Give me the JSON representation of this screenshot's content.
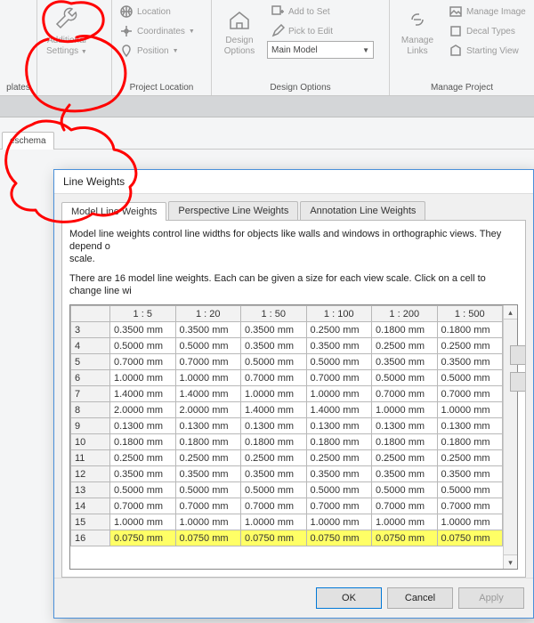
{
  "ribbon": {
    "group_plates": {
      "title_frag": "plates"
    },
    "group_settings": {
      "big": {
        "label1": "Additional",
        "label2": "Settings"
      }
    },
    "group_project_location": {
      "title": "Project Location",
      "items": [
        "Location",
        "Coordinates",
        "Position"
      ]
    },
    "group_design_options": {
      "title": "Design Options",
      "big": {
        "label1": "Design",
        "label2": "Options"
      },
      "items": [
        "Add to Set",
        "Pick to Edit"
      ],
      "combo": "Main Model"
    },
    "group_manage_project": {
      "title": "Manage Project",
      "big": {
        "label1": "Manage",
        "label2": "Links"
      },
      "items": [
        "Manage  Image",
        "Decal  Types",
        "Starting  View"
      ]
    }
  },
  "subbar": {
    "stub": "eschema"
  },
  "dialog": {
    "title": "Line Weights",
    "tabs": [
      "Model Line Weights",
      "Perspective Line Weights",
      "Annotation Line Weights"
    ],
    "active_tab": 0,
    "desc1": "Model line weights control line widths for objects like walls and windows in orthographic views. They depend o",
    "desc1b": "scale.",
    "desc2": "There are 16 model line weights. Each can be given a size for each view scale. Click on a cell to change line wi",
    "columns": [
      "",
      "1 : 5",
      "1 : 20",
      "1 : 50",
      "1 : 100",
      "1 : 200",
      "1 : 500"
    ],
    "rows": [
      {
        "n": "3",
        "v": [
          "0.3500 mm",
          "0.3500 mm",
          "0.3500 mm",
          "0.2500 mm",
          "0.1800 mm",
          "0.1800 mm"
        ]
      },
      {
        "n": "4",
        "v": [
          "0.5000 mm",
          "0.5000 mm",
          "0.3500 mm",
          "0.3500 mm",
          "0.2500 mm",
          "0.2500 mm"
        ]
      },
      {
        "n": "5",
        "v": [
          "0.7000 mm",
          "0.7000 mm",
          "0.5000 mm",
          "0.5000 mm",
          "0.3500 mm",
          "0.3500 mm"
        ]
      },
      {
        "n": "6",
        "v": [
          "1.0000 mm",
          "1.0000 mm",
          "0.7000 mm",
          "0.7000 mm",
          "0.5000 mm",
          "0.5000 mm"
        ]
      },
      {
        "n": "7",
        "v": [
          "1.4000 mm",
          "1.4000 mm",
          "1.0000 mm",
          "1.0000 mm",
          "0.7000 mm",
          "0.7000 mm"
        ]
      },
      {
        "n": "8",
        "v": [
          "2.0000 mm",
          "2.0000 mm",
          "1.4000 mm",
          "1.4000 mm",
          "1.0000 mm",
          "1.0000 mm"
        ]
      },
      {
        "n": "9",
        "v": [
          "0.1300 mm",
          "0.1300 mm",
          "0.1300 mm",
          "0.1300 mm",
          "0.1300 mm",
          "0.1300 mm"
        ]
      },
      {
        "n": "10",
        "v": [
          "0.1800 mm",
          "0.1800 mm",
          "0.1800 mm",
          "0.1800 mm",
          "0.1800 mm",
          "0.1800 mm"
        ]
      },
      {
        "n": "11",
        "v": [
          "0.2500 mm",
          "0.2500 mm",
          "0.2500 mm",
          "0.2500 mm",
          "0.2500 mm",
          "0.2500 mm"
        ]
      },
      {
        "n": "12",
        "v": [
          "0.3500 mm",
          "0.3500 mm",
          "0.3500 mm",
          "0.3500 mm",
          "0.3500 mm",
          "0.3500 mm"
        ]
      },
      {
        "n": "13",
        "v": [
          "0.5000 mm",
          "0.5000 mm",
          "0.5000 mm",
          "0.5000 mm",
          "0.5000 mm",
          "0.5000 mm"
        ]
      },
      {
        "n": "14",
        "v": [
          "0.7000 mm",
          "0.7000 mm",
          "0.7000 mm",
          "0.7000 mm",
          "0.7000 mm",
          "0.7000 mm"
        ]
      },
      {
        "n": "15",
        "v": [
          "1.0000 mm",
          "1.0000 mm",
          "1.0000 mm",
          "1.0000 mm",
          "1.0000 mm",
          "1.0000 mm"
        ]
      },
      {
        "n": "16",
        "v": [
          "0.0750 mm",
          "0.0750 mm",
          "0.0750 mm",
          "0.0750 mm",
          "0.0750 mm",
          "0.0750 mm"
        ],
        "highlight": true
      }
    ],
    "buttons": {
      "ok": "OK",
      "cancel": "Cancel",
      "apply": "Apply"
    }
  },
  "annotation": {
    "stroke": "#ff0000",
    "stroke_width": 3
  }
}
